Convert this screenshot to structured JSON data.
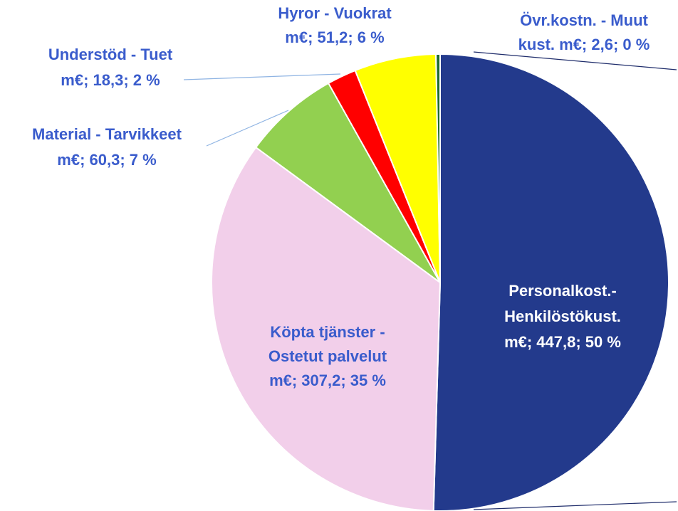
{
  "chart_data": {
    "type": "pie",
    "values": [
      447.8,
      307.2,
      60.3,
      18.3,
      51.2,
      2.6
    ],
    "colors": [
      "#233a8c",
      "#f2cfea",
      "#92d050",
      "#ff0000",
      "#ffff00",
      "#1e6b2e"
    ],
    "value_labels": [
      [
        "Personalkost.-",
        "Henkilöstökust.",
        "m€;  447,8; 50 %"
      ],
      [
        "Köpta tjänster -",
        "Ostetut palvelut",
        "m€;  307,2; 35 %"
      ],
      [
        "Material - Tarvikkeet",
        "m€;  60,3; 7 %"
      ],
      [
        "Understöd - Tuet",
        "m€;  18,3; 2 %"
      ],
      [
        "Hyror - Vuokrat",
        "m€;  51,2; 6 %"
      ],
      [
        "Övr.kostn. - Muut",
        "kust. m€;  2,6; 0 %"
      ]
    ]
  }
}
